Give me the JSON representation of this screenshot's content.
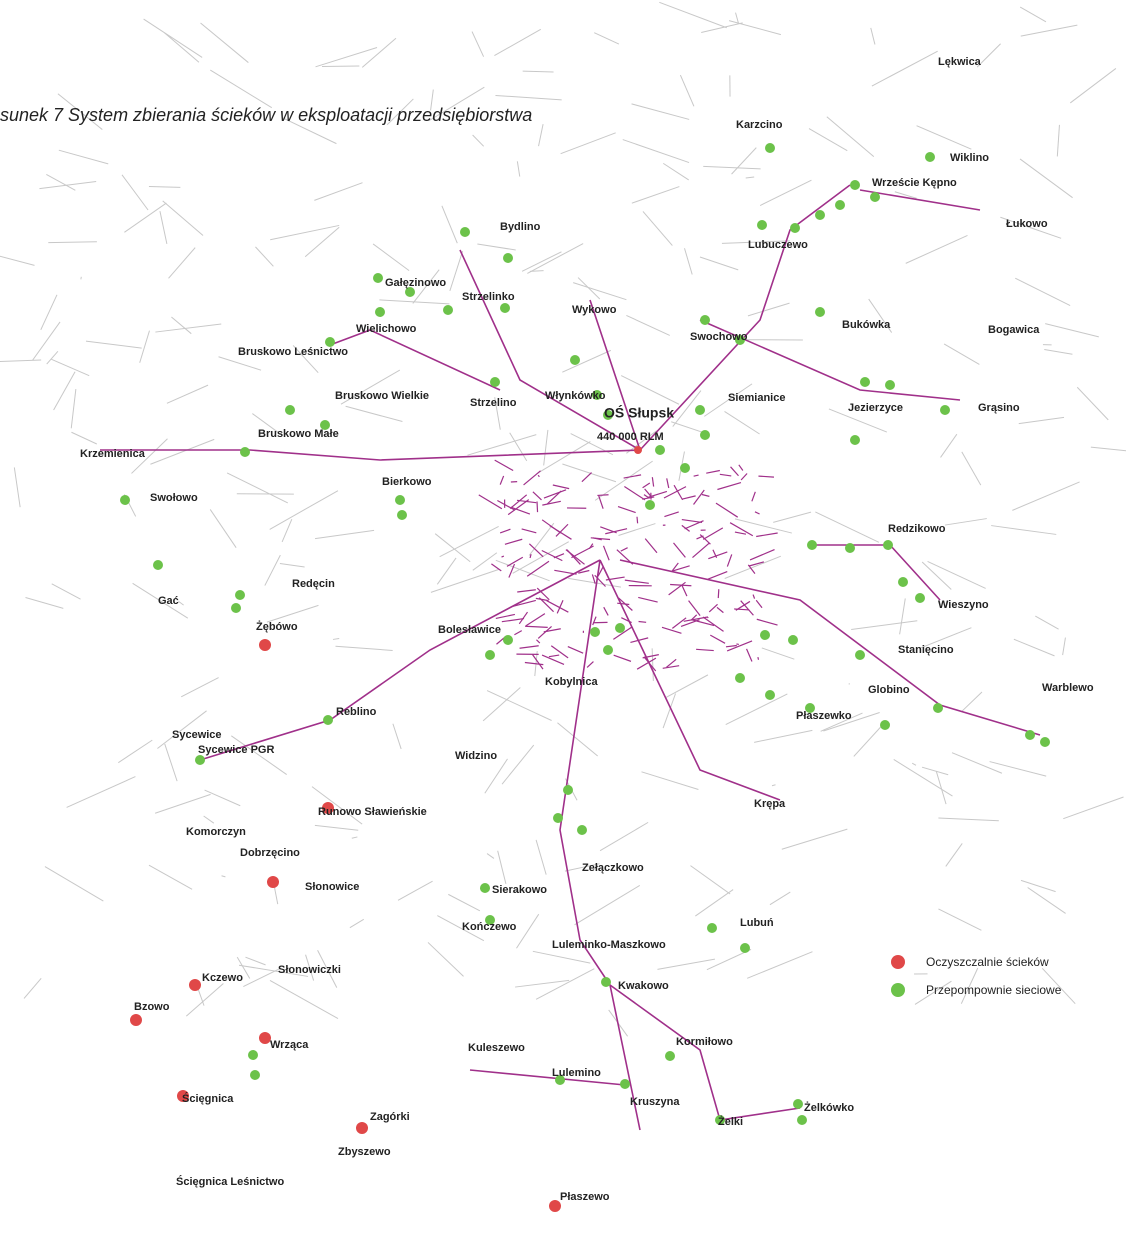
{
  "title": "sunek 7 System zbierania ścieków w eksploatacji przedsiębiorstwa",
  "plant": {
    "name": "OŚ Słupsk",
    "capacity": "440 000 RLM"
  },
  "places": [
    "Lękwica",
    "Karzcino",
    "Wiklino",
    "Wrzeście Kępno",
    "Bydlino",
    "Łukowo",
    "Lubuczewo",
    "Gałęzinowo",
    "Strzelinko",
    "Wykowo",
    "Bukówka",
    "Bogawica",
    "Wielichowo",
    "Swochowo",
    "Bruskowo Leśnictwo",
    "Bruskowo Wielkie",
    "Strzelino",
    "Włynkówko",
    "Siemianice",
    "Jezierzyce",
    "Grąsino",
    "Bruskowo Małe",
    "Krzemienica",
    "Bierkowo",
    "Swołowo",
    "Redzikowo",
    "Redęcin",
    "Gać",
    "Wieszyno",
    "Żębówo",
    "Bolesławice",
    "Stanięcino",
    "Kobylnica",
    "Globino",
    "Warblewo",
    "Reblino",
    "Płaszewko",
    "Sycewice",
    "Sycewice PGR",
    "Widzino",
    "Krępa",
    "Runowo Sławieńskie",
    "Komorczyn",
    "Dobrzęcino",
    "Zełączkowo",
    "Słonowice",
    "Sierakowo",
    "Kończewo",
    "Lubuń",
    "Luleminko-Maszkowo",
    "Kczewo",
    "Słonowiczki",
    "Kwakowo",
    "Bzowo",
    "Wrząca",
    "Kuleszewo",
    "Kormiłowo",
    "Lulemino",
    "Kruszyna",
    "Żelkówko",
    "Ścięgnica",
    "Zagórki",
    "Żelki",
    "Zbyszewo",
    "Ścięgnica Leśnictwo",
    "Płaszewo"
  ],
  "legend": [
    {
      "name": "Oczyszczalnie ścieków",
      "color": "#e04848"
    },
    {
      "name": "Przepompownie sieciowe",
      "color": "#6cc24a"
    }
  ]
}
